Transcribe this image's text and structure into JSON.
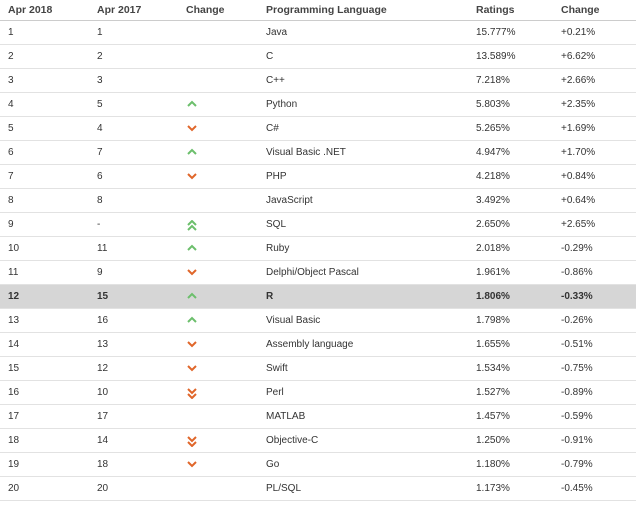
{
  "table": {
    "headers": [
      "Apr 2018",
      "Apr 2017",
      "Change",
      "Programming Language",
      "Ratings",
      "Change"
    ],
    "rows": [
      {
        "apr2018": "1",
        "apr2017": "1",
        "language": "Java",
        "rating": "15.777%",
        "change": "+0.21%"
      },
      {
        "apr2018": "2",
        "apr2017": "2",
        "language": "C",
        "rating": "13.589%",
        "change": "+6.62%"
      },
      {
        "apr2018": "3",
        "apr2017": "3",
        "language": "C++",
        "rating": "7.218%",
        "change": "+2.66%"
      },
      {
        "apr2018": "4",
        "apr2017": "5",
        "trend": "up",
        "language": "Python",
        "rating": "5.803%",
        "change": "+2.35%"
      },
      {
        "apr2018": "5",
        "apr2017": "4",
        "trend": "down",
        "language": "C#",
        "rating": "5.265%",
        "change": "+1.69%"
      },
      {
        "apr2018": "6",
        "apr2017": "7",
        "trend": "up",
        "language": "Visual Basic .NET",
        "rating": "4.947%",
        "change": "+1.70%"
      },
      {
        "apr2018": "7",
        "apr2017": "6",
        "trend": "down",
        "language": "PHP",
        "rating": "4.218%",
        "change": "+0.84%"
      },
      {
        "apr2018": "8",
        "apr2017": "8",
        "language": "JavaScript",
        "rating": "3.492%",
        "change": "+0.64%"
      },
      {
        "apr2018": "9",
        "apr2017": "-",
        "trend": "double-up",
        "language": "SQL",
        "rating": "2.650%",
        "change": "+2.65%"
      },
      {
        "apr2018": "10",
        "apr2017": "11",
        "trend": "up",
        "language": "Ruby",
        "rating": "2.018%",
        "change": "-0.29%"
      },
      {
        "apr2018": "11",
        "apr2017": "9",
        "trend": "down",
        "language": "Delphi/Object Pascal",
        "rating": "1.961%",
        "change": "-0.86%"
      },
      {
        "apr2018": "12",
        "apr2017": "15",
        "trend": "up",
        "language": "R",
        "rating": "1.806%",
        "change": "-0.33%",
        "highlighted": true
      },
      {
        "apr2018": "13",
        "apr2017": "16",
        "trend": "up",
        "language": "Visual Basic",
        "rating": "1.798%",
        "change": "-0.26%"
      },
      {
        "apr2018": "14",
        "apr2017": "13",
        "trend": "down",
        "language": "Assembly language",
        "rating": "1.655%",
        "change": "-0.51%"
      },
      {
        "apr2018": "15",
        "apr2017": "12",
        "trend": "down",
        "language": "Swift",
        "rating": "1.534%",
        "change": "-0.75%"
      },
      {
        "apr2018": "16",
        "apr2017": "10",
        "trend": "double-down",
        "language": "Perl",
        "rating": "1.527%",
        "change": "-0.89%"
      },
      {
        "apr2018": "17",
        "apr2017": "17",
        "language": "MATLAB",
        "rating": "1.457%",
        "change": "-0.59%"
      },
      {
        "apr2018": "18",
        "apr2017": "14",
        "trend": "double-down",
        "language": "Objective-C",
        "rating": "1.250%",
        "change": "-0.91%"
      },
      {
        "apr2018": "19",
        "apr2017": "18",
        "trend": "down",
        "language": "Go",
        "rating": "1.180%",
        "change": "-0.79%"
      },
      {
        "apr2018": "20",
        "apr2017": "20",
        "language": "PL/SQL",
        "rating": "1.173%",
        "change": "-0.45%"
      }
    ]
  }
}
